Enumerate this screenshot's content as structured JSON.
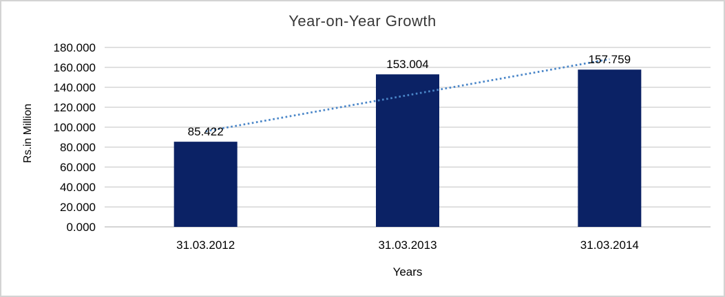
{
  "chart_data": {
    "type": "bar",
    "title": "Year-on-Year Growth",
    "xlabel": "Years",
    "ylabel": "Rs.in Million",
    "categories": [
      "31.03.2012",
      "31.03.2013",
      "31.03.2014"
    ],
    "values": [
      85.422,
      153.004,
      157.759
    ],
    "data_labels": [
      "85.422",
      "153.004",
      "157.759"
    ],
    "ylim": [
      0,
      180
    ],
    "ytick_step": 20,
    "ytick_labels": [
      "0.000",
      "20.000",
      "40.000",
      "60.000",
      "80.000",
      "100.000",
      "120.000",
      "140.000",
      "160.000",
      "180.000"
    ],
    "grid": true,
    "legend": false,
    "trendline": {
      "type": "linear",
      "style": "dotted",
      "fitted_values": [
        95.893,
        132.062,
        168.23
      ]
    },
    "colors": {
      "bar": "#0b2265",
      "trendline": "#4a86c8",
      "gridline": "#d6d6d6",
      "axis_line": "#c6c6c6",
      "text": "#000000",
      "title_text": "#383838",
      "frame_border": "#d3d3d3",
      "background": "#ffffff"
    }
  }
}
